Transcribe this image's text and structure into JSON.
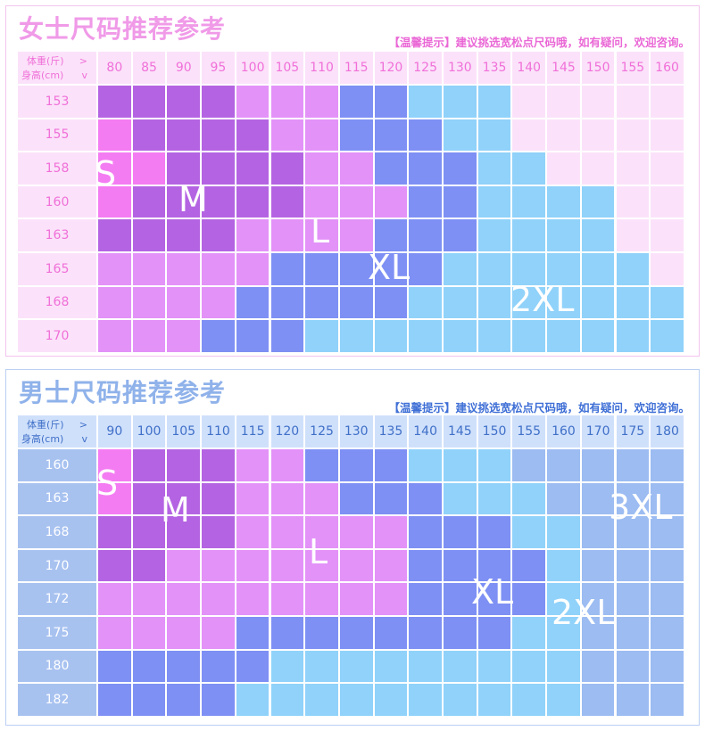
{
  "colors": {
    "S": "#f47cf2",
    "M": "#b464e2",
    "L": "#e392f8",
    "XL": "#7e90f4",
    "2XL": "#90d2fa",
    "3XL": "#9cbcf2",
    "empty": "#fbe2fa"
  },
  "women": {
    "title": "女士尺码推荐参考",
    "tip": "【温馨提示】建议挑选宽松点尺码哦，如有疑问，欢迎咨询。",
    "corner": {
      "weight": "体重(斤)",
      "weight_arrow": ">",
      "height": "身高(cm)",
      "height_arrow": "v"
    },
    "weights": [
      "80",
      "85",
      "90",
      "95",
      "100",
      "105",
      "110",
      "115",
      "120",
      "125",
      "130",
      "135",
      "140",
      "145",
      "150",
      "155",
      "160"
    ],
    "heights": [
      "153",
      "155",
      "158",
      "160",
      "163",
      "165",
      "168",
      "170"
    ],
    "grid": [
      [
        "M",
        "M",
        "M",
        "M",
        "L",
        "L",
        "L",
        "XL",
        "XL",
        "2XL",
        "2XL",
        "2XL",
        "",
        "",
        "",
        "",
        ""
      ],
      [
        "S",
        "M",
        "M",
        "M",
        "M",
        "L",
        "L",
        "XL",
        "XL",
        "XL",
        "2XL",
        "2XL",
        "",
        "",
        "",
        "",
        ""
      ],
      [
        "S",
        "S",
        "M",
        "M",
        "M",
        "M",
        "L",
        "L",
        "XL",
        "XL",
        "XL",
        "2XL",
        "2XL",
        "",
        "",
        "",
        ""
      ],
      [
        "S",
        "M",
        "M",
        "M",
        "M",
        "M",
        "L",
        "L",
        "L",
        "XL",
        "XL",
        "2XL",
        "2XL",
        "2XL",
        "2XL",
        "",
        ""
      ],
      [
        "M",
        "M",
        "M",
        "M",
        "L",
        "L",
        "L",
        "L",
        "XL",
        "XL",
        "XL",
        "2XL",
        "2XL",
        "2XL",
        "2XL",
        "",
        ""
      ],
      [
        "L",
        "L",
        "L",
        "L",
        "L",
        "XL",
        "XL",
        "XL",
        "XL",
        "XL",
        "2XL",
        "2XL",
        "2XL",
        "2XL",
        "2XL",
        "2XL",
        ""
      ],
      [
        "L",
        "L",
        "L",
        "L",
        "XL",
        "XL",
        "XL",
        "XL",
        "XL",
        "2XL",
        "2XL",
        "2XL",
        "2XL",
        "2XL",
        "2XL",
        "2XL",
        "2XL"
      ],
      [
        "L",
        "L",
        "L",
        "XL",
        "XL",
        "XL",
        "2XL",
        "2XL",
        "2XL",
        "2XL",
        "2XL",
        "2XL",
        "2XL",
        "2XL",
        "2XL",
        "2XL",
        "2XL"
      ]
    ],
    "labels": {
      "S": "S",
      "M": "M",
      "L": "L",
      "XL": "XL",
      "2XL": "2XL"
    }
  },
  "men": {
    "title": "男士尺码推荐参考",
    "tip": "【温馨提示】建议挑选宽松点尺码哦，如有疑问，欢迎咨询。",
    "corner": {
      "weight": "体重(斤)",
      "weight_arrow": ">",
      "height": "身高(cm)",
      "height_arrow": "v"
    },
    "weights": [
      "90",
      "100",
      "105",
      "110",
      "115",
      "120",
      "125",
      "130",
      "135",
      "140",
      "145",
      "150",
      "155",
      "160",
      "170",
      "175",
      "180"
    ],
    "heights": [
      "160",
      "163",
      "168",
      "170",
      "172",
      "175",
      "180",
      "182"
    ],
    "grid": [
      [
        "S",
        "M",
        "M",
        "M",
        "L",
        "L",
        "XL",
        "XL",
        "XL",
        "2XL",
        "2XL",
        "2XL",
        "3XL",
        "3XL",
        "3XL",
        "3XL",
        "3XL"
      ],
      [
        "S",
        "M",
        "M",
        "M",
        "L",
        "L",
        "L",
        "XL",
        "XL",
        "XL",
        "2XL",
        "2XL",
        "2XL",
        "3XL",
        "3XL",
        "3XL",
        "3XL"
      ],
      [
        "M",
        "M",
        "M",
        "M",
        "L",
        "L",
        "L",
        "L",
        "L",
        "XL",
        "XL",
        "XL",
        "2XL",
        "2XL",
        "3XL",
        "3XL",
        "3XL"
      ],
      [
        "M",
        "M",
        "L",
        "L",
        "L",
        "L",
        "L",
        "L",
        "L",
        "XL",
        "XL",
        "XL",
        "XL",
        "2XL",
        "3XL",
        "3XL",
        "3XL"
      ],
      [
        "L",
        "L",
        "L",
        "L",
        "L",
        "L",
        "L",
        "L",
        "L",
        "XL",
        "XL",
        "XL",
        "XL",
        "2XL",
        "3XL",
        "3XL",
        "3XL"
      ],
      [
        "L",
        "L",
        "L",
        "L",
        "XL",
        "XL",
        "XL",
        "XL",
        "XL",
        "XL",
        "XL",
        "XL",
        "2XL",
        "2XL",
        "3XL",
        "3XL",
        "3XL"
      ],
      [
        "XL",
        "XL",
        "XL",
        "XL",
        "XL",
        "2XL",
        "2XL",
        "2XL",
        "2XL",
        "2XL",
        "2XL",
        "2XL",
        "2XL",
        "2XL",
        "3XL",
        "3XL",
        "3XL"
      ],
      [
        "XL",
        "XL",
        "XL",
        "XL",
        "2XL",
        "2XL",
        "2XL",
        "2XL",
        "2XL",
        "2XL",
        "2XL",
        "2XL",
        "2XL",
        "2XL",
        "3XL",
        "3XL",
        "3XL"
      ]
    ],
    "labels": {
      "S": "S",
      "M": "M",
      "L": "L",
      "XL": "XL",
      "2XL": "2XL",
      "3XL": "3XL"
    }
  }
}
